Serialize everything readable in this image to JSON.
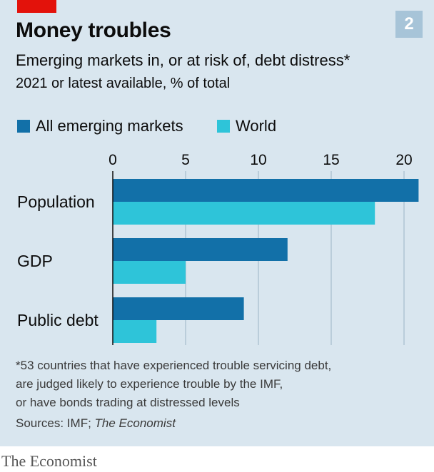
{
  "chart_number": "2",
  "title": "Money troubles",
  "subtitle": "Emerging markets in, or at risk of, debt distress*",
  "unit_note": "2021 or latest available, % of total",
  "footnote_lines": [
    "*53 countries that have experienced trouble servicing debt,",
    "are judged likely to experience trouble by the IMF,",
    "or have bonds trading at distressed levels"
  ],
  "sources_prefix": "Sources: IMF; ",
  "sources_italic": "The Economist",
  "brand": "The Economist",
  "colors": {
    "panel_bg": "#d9e6ef",
    "accent_red": "#e3120b",
    "emerging": "#1270a8",
    "world": "#2ec4d9",
    "grid": "#9ab4c6"
  },
  "chart_data": {
    "type": "bar",
    "orientation": "horizontal",
    "categories": [
      "Population",
      "GDP",
      "Public debt"
    ],
    "series": [
      {
        "name": "All emerging markets",
        "color": "#1270a8",
        "values": [
          21,
          12,
          9
        ]
      },
      {
        "name": "World",
        "color": "#2ec4d9",
        "values": [
          18,
          5,
          3
        ]
      }
    ],
    "xlim": [
      0,
      21
    ],
    "xticks": [
      0,
      5,
      10,
      15,
      20
    ],
    "legend_position": "top-left",
    "grid": true
  }
}
